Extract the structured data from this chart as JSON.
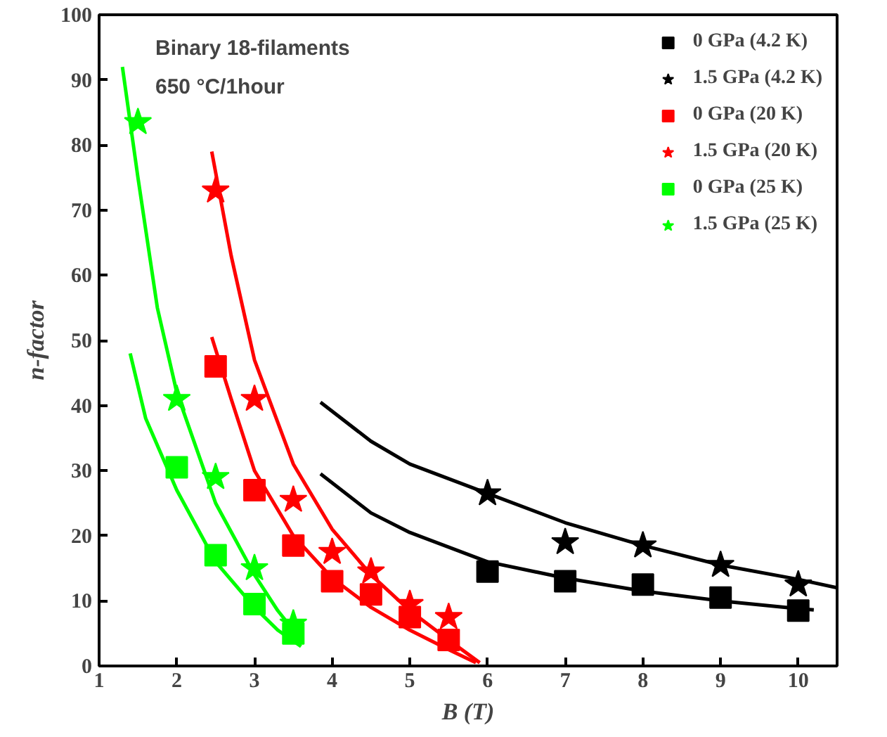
{
  "chart_data": {
    "type": "scatter",
    "xlabel": "B (T)",
    "ylabel": "n-factor",
    "annotations": [
      "Binary 18-filaments",
      "650 °C/1hour"
    ],
    "xlim": [
      1,
      10.5
    ],
    "ylim": [
      0,
      100
    ],
    "xticks": [
      1,
      2,
      3,
      4,
      5,
      6,
      7,
      8,
      9,
      10
    ],
    "yticks": [
      0,
      10,
      20,
      30,
      40,
      50,
      60,
      70,
      80,
      90,
      100
    ],
    "grid": false,
    "legend": "top right",
    "series": [
      {
        "name": "0 GPa (4.2 K)",
        "color": "#000000",
        "marker": "square",
        "x": [
          6,
          7,
          8,
          9,
          10
        ],
        "values": [
          14.5,
          13,
          12.5,
          10.5,
          8.5
        ]
      },
      {
        "name": "1.5 GPa (4.2 K)",
        "color": "#000000",
        "marker": "star",
        "x": [
          6,
          7,
          8,
          9,
          10
        ],
        "values": [
          26.5,
          19,
          18.5,
          15.5,
          12.5
        ]
      },
      {
        "name": "0 GPa (20 K)",
        "color": "#ff0000",
        "marker": "square",
        "x": [
          2.5,
          3,
          3.5,
          4,
          4.5,
          5,
          5.5
        ],
        "values": [
          46,
          27,
          18.5,
          13,
          11,
          7.5,
          4
        ]
      },
      {
        "name": "1.5 GPa (20 K)",
        "color": "#ff0000",
        "marker": "star",
        "x": [
          2.5,
          3,
          3.5,
          4,
          4.5,
          5,
          5.5
        ],
        "values": [
          73,
          41,
          25.5,
          17.5,
          14.5,
          9.5,
          7.5
        ]
      },
      {
        "name": "0 GPa (25 K)",
        "color": "#00ff00",
        "marker": "square",
        "x": [
          2,
          2.5,
          3,
          3.5
        ],
        "values": [
          30.5,
          17,
          9.5,
          5
        ]
      },
      {
        "name": "1.5 GPa (25 K)",
        "color": "#00ff00",
        "marker": "star",
        "x": [
          1.5,
          2,
          2.5,
          3,
          3.5
        ],
        "values": [
          83.5,
          41,
          29,
          15,
          6.5
        ]
      },
      {
        "type": "line",
        "color": "#000000",
        "x": [
          3.85,
          4.5,
          5,
          6,
          7,
          8,
          9,
          10,
          10.5
        ],
        "values": [
          40.5,
          34.5,
          31,
          26.5,
          22,
          18.5,
          15.5,
          13.3,
          12
        ]
      },
      {
        "type": "line",
        "color": "#000000",
        "x": [
          3.85,
          4.5,
          5,
          6,
          7,
          8,
          9,
          10,
          10.2
        ],
        "values": [
          29.5,
          23.5,
          20.5,
          16,
          13.5,
          11.5,
          10,
          8.8,
          8.6
        ]
      },
      {
        "type": "line",
        "color": "#ff0000",
        "x": [
          2.45,
          2.7,
          3,
          3.5,
          4,
          4.5,
          5,
          5.5,
          5.9
        ],
        "values": [
          79,
          63,
          47,
          31,
          21,
          14,
          8.5,
          4,
          0.5
        ]
      },
      {
        "type": "line",
        "color": "#ff0000",
        "x": [
          2.45,
          2.7,
          3,
          3.5,
          4,
          4.5,
          5,
          5.5,
          5.85
        ],
        "values": [
          50.5,
          41,
          30,
          20,
          13.5,
          9,
          5.5,
          2.5,
          0.5
        ]
      },
      {
        "type": "line",
        "color": "#00ff00",
        "x": [
          1.3,
          1.5,
          1.75,
          2,
          2.5,
          3,
          3.3,
          3.6
        ],
        "values": [
          92,
          75,
          55,
          42,
          25,
          14,
          8.5,
          4
        ]
      },
      {
        "type": "line",
        "color": "#00ff00",
        "x": [
          1.4,
          1.6,
          2,
          2.5,
          3,
          3.3,
          3.6
        ],
        "values": [
          48,
          38,
          27,
          16,
          9,
          5.5,
          3
        ]
      }
    ]
  }
}
